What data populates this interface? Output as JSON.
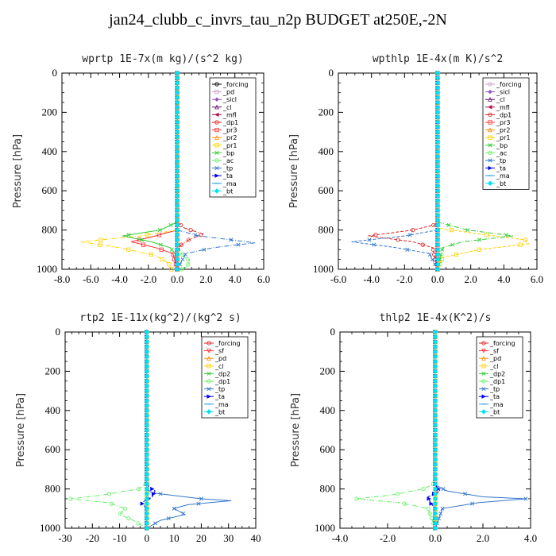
{
  "page_title": "jan24_clubb_c_invrs_tau_n2p  BUDGET at250E,-2N",
  "chart_data": [
    {
      "type": "line",
      "title": "wprtp   1E-7x(m kg)/(s^2 kg)",
      "ylabel": "Pressure [hPa]",
      "xlim": [
        -8,
        6
      ],
      "ylim": [
        1000,
        0
      ],
      "xticks": [
        "-8.0",
        "-6.0",
        "-4.0",
        "-2.0",
        "0.0",
        "2.0",
        "4.0",
        "6.0"
      ],
      "xtick_values": [
        -8,
        -6,
        -4,
        -2,
        0,
        2,
        4,
        6
      ],
      "yticks": [
        "0",
        "200",
        "400",
        "600",
        "800",
        "1000"
      ],
      "ytick_values": [
        0,
        200,
        400,
        600,
        800,
        1000
      ],
      "legend_position": "top-right",
      "series": [
        {
          "name": "_forcing",
          "color": "#000000",
          "marker": "o",
          "p": [
            0,
            1000
          ],
          "x": [
            0,
            0
          ]
        },
        {
          "name": "_pd",
          "color": "#c8a2c8",
          "marker": "s",
          "p": [
            0,
            1000
          ],
          "x": [
            0,
            0
          ]
        },
        {
          "name": "_sicl",
          "color": "#8a4fc4",
          "marker": "d",
          "p": [
            0,
            1000
          ],
          "x": [
            0,
            0
          ]
        },
        {
          "name": "_cl",
          "color": "#6a0d6a",
          "marker": "^",
          "p": [
            0,
            1000
          ],
          "x": [
            0,
            0
          ]
        },
        {
          "name": "_mfl",
          "color": "#b0104a",
          "marker": "<",
          "p": [
            0,
            1000
          ],
          "x": [
            0,
            0
          ]
        },
        {
          "name": "_dp1",
          "color": "#e02020",
          "marker": "o",
          "p": [
            0,
            760,
            790,
            820,
            850,
            880,
            910,
            950,
            1000
          ],
          "x": [
            0,
            0,
            0.5,
            1.8,
            0.8,
            0.2,
            0,
            0,
            0
          ]
        },
        {
          "name": "_pr3",
          "color": "#ff3030",
          "marker": "s",
          "p": [
            0,
            800,
            830,
            860,
            890,
            920,
            1000
          ],
          "x": [
            0,
            0,
            -1.5,
            -3.2,
            -1.5,
            -0.3,
            0
          ]
        },
        {
          "name": "_pr2",
          "color": "#ff8c00",
          "marker": "^",
          "p": [
            0,
            1000
          ],
          "x": [
            0,
            0
          ]
        },
        {
          "name": "_pr1",
          "color": "#ffd000",
          "marker": "s",
          "p": [
            0,
            800,
            830,
            860,
            890,
            930,
            970,
            1000
          ],
          "x": [
            0,
            0,
            -2.5,
            -6.7,
            -4.0,
            -1.5,
            -0.6,
            -0.4
          ]
        },
        {
          "name": "_bp",
          "color": "#33cc33",
          "marker": "x",
          "p": [
            0,
            760,
            800,
            830,
            860,
            890,
            930,
            1000
          ],
          "x": [
            0,
            0,
            -1.2,
            -3.8,
            -1.8,
            -0.5,
            0,
            0
          ]
        },
        {
          "name": "_ac",
          "color": "#66ee66",
          "marker": "o",
          "p": [
            0,
            900,
            930,
            960,
            990,
            1000
          ],
          "x": [
            0,
            0,
            0.4,
            0.9,
            0.6,
            0.3
          ]
        },
        {
          "name": "_tp",
          "color": "#3377cc",
          "marker": "x",
          "p": [
            0,
            800,
            830,
            865,
            890,
            920,
            1000
          ],
          "x": [
            0,
            0,
            1.5,
            5.4,
            2.5,
            0.6,
            0
          ]
        },
        {
          "name": "_ta",
          "color": "#0000ff",
          "marker": ">",
          "p": [
            0,
            1000
          ],
          "x": [
            0,
            0
          ]
        },
        {
          "name": "_ma",
          "color": "#2299dd",
          "marker": "-",
          "p": [
            0,
            1000
          ],
          "x": [
            0,
            0
          ]
        },
        {
          "name": "_bt",
          "color": "#00e5ee",
          "marker": "D",
          "p": [
            0,
            1000
          ],
          "x": [
            0,
            0
          ]
        }
      ]
    },
    {
      "type": "line",
      "title": "wpthlp   1E-4x(m K)/s^2",
      "ylabel": "Pressure [hPa]",
      "xlim": [
        -6,
        6
      ],
      "ylim": [
        1000,
        0
      ],
      "xticks": [
        "-6.0",
        "-4.0",
        "-2.0",
        "0.0",
        "2.0",
        "4.0",
        "6.0"
      ],
      "xtick_values": [
        -6,
        -4,
        -2,
        0,
        2,
        4,
        6
      ],
      "yticks": [
        "0",
        "200",
        "400",
        "600",
        "800",
        "1000"
      ],
      "ytick_values": [
        0,
        200,
        400,
        600,
        800,
        1000
      ],
      "legend_position": "top-right",
      "series": [
        {
          "name": "_forcing",
          "color": "#c8a2c8",
          "marker": "o",
          "p": [
            0,
            1000
          ],
          "x": [
            0,
            0
          ]
        },
        {
          "name": "_sicl",
          "color": "#8a4fc4",
          "marker": "d",
          "p": [
            0,
            1000
          ],
          "x": [
            0,
            0
          ]
        },
        {
          "name": "_cl",
          "color": "#6a0d6a",
          "marker": "^",
          "p": [
            0,
            1000
          ],
          "x": [
            0,
            0
          ]
        },
        {
          "name": "_mfl",
          "color": "#b0104a",
          "marker": "<",
          "p": [
            0,
            1000
          ],
          "x": [
            0,
            0
          ]
        },
        {
          "name": "_dp1",
          "color": "#e02020",
          "marker": "o",
          "p": [
            0,
            770,
            800,
            830,
            860,
            890,
            1000
          ],
          "x": [
            0,
            0,
            -1.5,
            -4.2,
            -1.5,
            -0.3,
            0
          ]
        },
        {
          "name": "_pr3",
          "color": "#ff3030",
          "marker": "s",
          "p": [
            0,
            1000
          ],
          "x": [
            0,
            0
          ]
        },
        {
          "name": "_pr2",
          "color": "#ff8c00",
          "marker": "^",
          "p": [
            0,
            1000
          ],
          "x": [
            0,
            0
          ]
        },
        {
          "name": "_pr1",
          "color": "#ffd000",
          "marker": "s",
          "p": [
            0,
            790,
            820,
            850,
            870,
            900,
            940,
            1000
          ],
          "x": [
            0,
            0,
            2.5,
            5.3,
            5.5,
            2.5,
            0.3,
            0
          ]
        },
        {
          "name": "_bp",
          "color": "#33cc33",
          "marker": "x",
          "p": [
            0,
            760,
            800,
            830,
            860,
            890,
            1000
          ],
          "x": [
            0,
            0,
            1.8,
            4.6,
            1.5,
            0.3,
            0
          ]
        },
        {
          "name": "_ac",
          "color": "#66ee66",
          "marker": "o",
          "p": [
            0,
            1000
          ],
          "x": [
            0,
            0
          ]
        },
        {
          "name": "_tp",
          "color": "#3377cc",
          "marker": "x",
          "p": [
            0,
            800,
            830,
            860,
            890,
            920,
            1000
          ],
          "x": [
            0,
            0,
            -2.0,
            -5.2,
            -2.5,
            -0.5,
            0
          ]
        },
        {
          "name": "_ta",
          "color": "#0000ff",
          "marker": ">",
          "p": [
            0,
            1000
          ],
          "x": [
            0,
            0
          ]
        },
        {
          "name": "_ma",
          "color": "#2299dd",
          "marker": "-",
          "p": [
            0,
            1000
          ],
          "x": [
            0,
            0
          ]
        },
        {
          "name": "_bt",
          "color": "#00e5ee",
          "marker": "D",
          "p": [
            0,
            1000
          ],
          "x": [
            0,
            0
          ]
        }
      ]
    },
    {
      "type": "line",
      "title": "rtp2   1E-11x(kg^2)/(kg^2 s)",
      "ylabel": "Pressure [hPa]",
      "xlim": [
        -30,
        40
      ],
      "ylim": [
        1000,
        0
      ],
      "xticks": [
        "-30",
        "-20",
        "-10",
        "0",
        "10",
        "20",
        "30",
        "40"
      ],
      "xtick_values": [
        -30,
        -20,
        -10,
        0,
        10,
        20,
        30,
        40
      ],
      "yticks": [
        "0",
        "200",
        "400",
        "600",
        "800",
        "1000"
      ],
      "ytick_values": [
        0,
        200,
        400,
        600,
        800,
        1000
      ],
      "legend_position": "top-right",
      "series": [
        {
          "name": "_forcing",
          "color": "#e02020",
          "marker": "o",
          "p": [
            0,
            1000
          ],
          "x": [
            0,
            0
          ]
        },
        {
          "name": "_sf",
          "color": "#ff3030",
          "marker": "v",
          "p": [
            0,
            1000
          ],
          "x": [
            0,
            0
          ]
        },
        {
          "name": "_pd",
          "color": "#ff8c00",
          "marker": "^",
          "p": [
            0,
            1000
          ],
          "x": [
            0,
            0
          ]
        },
        {
          "name": "_cl",
          "color": "#ffd000",
          "marker": "s",
          "p": [
            0,
            1000
          ],
          "x": [
            0,
            0
          ]
        },
        {
          "name": "_dp2",
          "color": "#33cc33",
          "marker": "x",
          "p": [
            0,
            1000
          ],
          "x": [
            0,
            0
          ]
        },
        {
          "name": "_dp1",
          "color": "#66ee66",
          "marker": "o",
          "p": [
            0,
            770,
            800,
            830,
            850,
            870,
            900,
            930,
            960,
            1000
          ],
          "x": [
            0,
            0,
            -3,
            -16,
            -28,
            -14,
            -8,
            -10,
            -5,
            0
          ]
        },
        {
          "name": "_tp",
          "color": "#3377cc",
          "marker": "x",
          "p": [
            0,
            800,
            820,
            850,
            860,
            880,
            900,
            930,
            960,
            1000
          ],
          "x": [
            0,
            0,
            2,
            20,
            31,
            15,
            10,
            14,
            5,
            0
          ]
        },
        {
          "name": "_ta",
          "color": "#0000ff",
          "marker": ">",
          "p": [
            0,
            780,
            810,
            840,
            870,
            900,
            1000
          ],
          "x": [
            0,
            0,
            3,
            2,
            -2,
            0,
            0
          ]
        },
        {
          "name": "_ma",
          "color": "#2299dd",
          "marker": "-",
          "p": [
            0,
            1000
          ],
          "x": [
            0,
            0
          ]
        },
        {
          "name": "_bt",
          "color": "#00e5ee",
          "marker": "D",
          "p": [
            0,
            1000
          ],
          "x": [
            0,
            0
          ]
        }
      ]
    },
    {
      "type": "line",
      "title": "thlp2   1E-4x(K^2)/s",
      "ylabel": "Pressure [hPa]",
      "xlim": [
        -4,
        4
      ],
      "ylim": [
        1000,
        0
      ],
      "xticks": [
        "-4.0",
        "-2.0",
        "0.0",
        "2.0",
        "4.0"
      ],
      "xtick_values": [
        -4,
        -2,
        0,
        2,
        4
      ],
      "yticks": [
        "0",
        "200",
        "400",
        "600",
        "800",
        "1000"
      ],
      "ytick_values": [
        0,
        200,
        400,
        600,
        800,
        1000
      ],
      "legend_position": "top-right",
      "series": [
        {
          "name": "_forcing",
          "color": "#e02020",
          "marker": "o",
          "p": [
            0,
            1000
          ],
          "x": [
            0,
            0
          ]
        },
        {
          "name": "_sf",
          "color": "#ff3030",
          "marker": "v",
          "p": [
            0,
            1000
          ],
          "x": [
            0,
            0
          ]
        },
        {
          "name": "_pd",
          "color": "#ff8c00",
          "marker": "^",
          "p": [
            0,
            1000
          ],
          "x": [
            0,
            0
          ]
        },
        {
          "name": "_cl",
          "color": "#ffd000",
          "marker": "s",
          "p": [
            0,
            1000
          ],
          "x": [
            0,
            0
          ]
        },
        {
          "name": "_dp2",
          "color": "#33cc33",
          "marker": "x",
          "p": [
            0,
            1000
          ],
          "x": [
            0,
            0
          ]
        },
        {
          "name": "_dp1",
          "color": "#66ee66",
          "marker": "o",
          "p": [
            0,
            770,
            800,
            830,
            850,
            870,
            900,
            1000
          ],
          "x": [
            0,
            0,
            -0.5,
            -1.8,
            -3.3,
            -1.5,
            -0.3,
            0
          ]
        },
        {
          "name": "_tp",
          "color": "#3377cc",
          "marker": "x",
          "p": [
            0,
            780,
            810,
            840,
            850,
            870,
            900,
            1000
          ],
          "x": [
            0,
            0,
            0.5,
            2.0,
            3.8,
            1.8,
            0.3,
            0
          ]
        },
        {
          "name": "_ta",
          "color": "#0000ff",
          "marker": ">",
          "p": [
            0,
            780,
            810,
            840,
            870,
            900,
            1000
          ],
          "x": [
            0,
            0,
            0.2,
            -0.3,
            -0.2,
            0,
            0
          ]
        },
        {
          "name": "_ma",
          "color": "#2299dd",
          "marker": "-",
          "p": [
            0,
            1000
          ],
          "x": [
            0,
            0
          ]
        },
        {
          "name": "_bt",
          "color": "#00e5ee",
          "marker": "D",
          "p": [
            0,
            1000
          ],
          "x": [
            0,
            0
          ]
        }
      ]
    }
  ]
}
